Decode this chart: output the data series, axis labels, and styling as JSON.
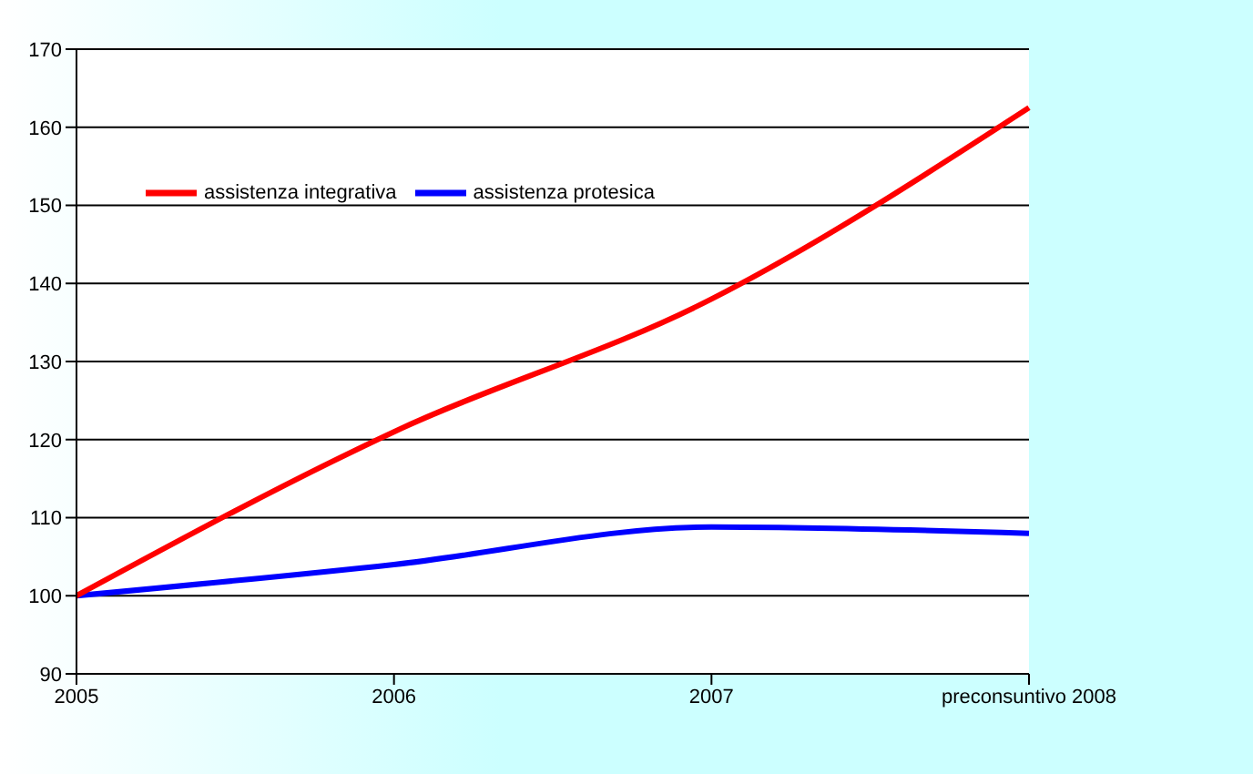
{
  "chart_data": {
    "type": "line",
    "categories": [
      "2005",
      "2006",
      "2007",
      "preconsuntivo 2008"
    ],
    "series": [
      {
        "name": "assistenza protesica",
        "color": "#0000ff",
        "values": [
          100,
          104,
          108.8,
          108
        ]
      },
      {
        "name": "assistenza integrativa",
        "color": "#ff0000",
        "values": [
          100,
          121,
          138,
          162.5
        ]
      }
    ],
    "ylim": [
      90,
      170
    ],
    "yticks": [
      90,
      100,
      110,
      120,
      130,
      140,
      150,
      160,
      170
    ],
    "grid": "y",
    "legend": "top left",
    "marker": "none",
    "line_style": "solid"
  }
}
